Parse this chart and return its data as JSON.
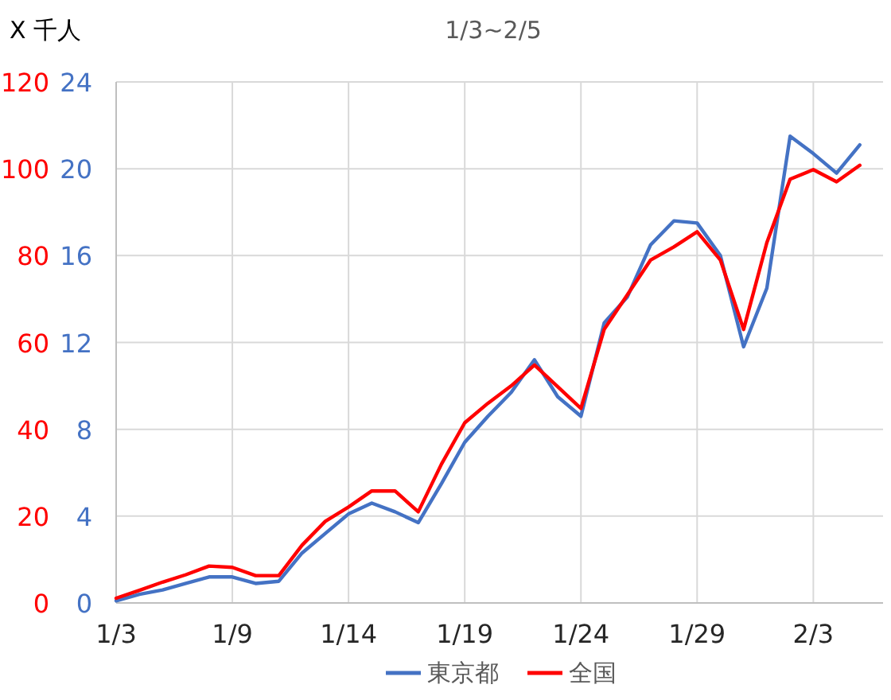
{
  "chart_data": {
    "type": "line",
    "title": "1/3~2/5",
    "ylabel": "X 千人",
    "categories": [
      "1/3",
      null,
      null,
      null,
      null,
      "1/9",
      null,
      null,
      null,
      null,
      "1/14",
      null,
      null,
      null,
      null,
      "1/19",
      null,
      null,
      null,
      null,
      "1/24",
      null,
      null,
      null,
      null,
      "1/29",
      null,
      null,
      null,
      null,
      "2/3",
      null,
      null
    ],
    "series": [
      {
        "name": "東京都",
        "color": "#4472c4",
        "axis": "y2",
        "values": [
          0.1,
          0.4,
          0.6,
          0.9,
          1.2,
          1.2,
          0.9,
          1.0,
          2.3,
          3.2,
          4.1,
          4.6,
          4.2,
          3.7,
          5.5,
          7.4,
          8.6,
          9.7,
          11.2,
          9.5,
          8.6,
          12.9,
          14.1,
          16.5,
          17.6,
          17.5,
          16.0,
          11.8,
          14.5,
          21.5,
          20.7,
          19.8,
          21.1
        ]
      },
      {
        "name": "全国",
        "color": "#ff0000",
        "values": [
          1.1,
          2.9,
          4.8,
          6.5,
          8.5,
          8.2,
          6.3,
          6.3,
          13.3,
          18.8,
          22.1,
          25.8,
          25.8,
          21.0,
          32,
          41.5,
          46.0,
          50.0,
          54.8,
          49.8,
          44.8,
          63,
          71,
          79,
          82,
          85.5,
          79,
          63,
          83,
          97.6,
          99.8,
          97.0,
          100.8
        ]
      }
    ],
    "ylim": [
      0,
      120
    ],
    "yticks": [
      0,
      20,
      40,
      60,
      80,
      100,
      120
    ],
    "y2lim": [
      0,
      24
    ],
    "y2ticks": [
      0,
      4,
      8,
      12,
      16,
      20,
      24
    ],
    "grid": true,
    "legend": "bottom"
  }
}
